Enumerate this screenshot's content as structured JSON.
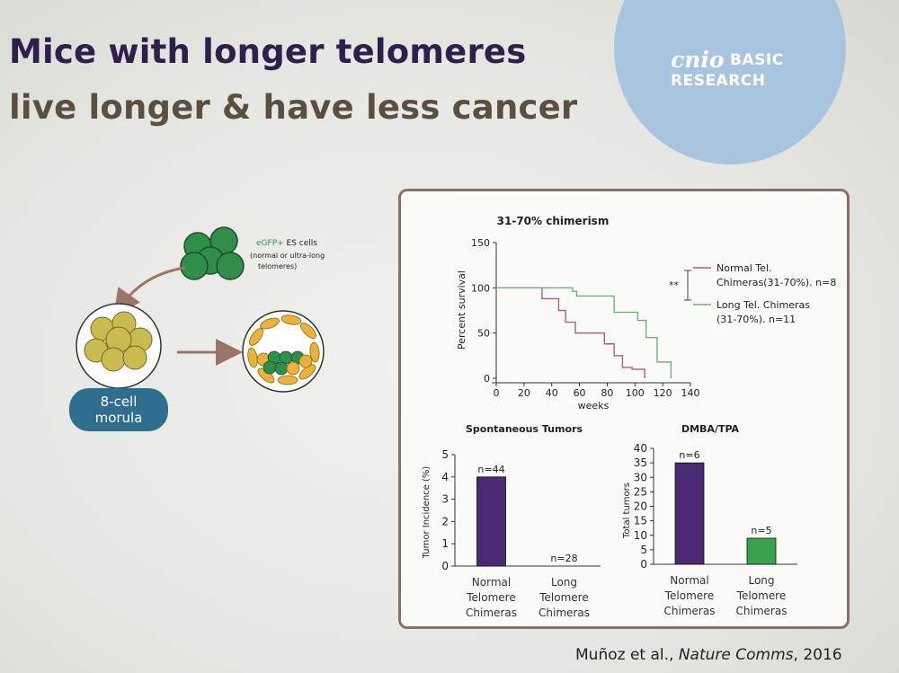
{
  "slide": {
    "title_line1": "Mice with longer telomeres",
    "title_line2": "live longer & have less cancer",
    "logo_main": "cnio",
    "logo_basic": "BASIC",
    "logo_research": "RESEARCH",
    "citation_authors": "Muñoz et al., ",
    "citation_journal": "Nature Comms",
    "citation_year": ", 2016"
  },
  "diagram": {
    "es_cells_label": "eGFP+",
    "es_cells_label_rest": " ES cells",
    "es_cells_sub1": "(normal or ultra-long",
    "es_cells_sub2": "telomeres)",
    "morula_line1": "8-cell",
    "morula_line2": "morula"
  },
  "colors": {
    "title_primary": "#2e1f4d",
    "title_secondary": "#5b5040",
    "logo_circle": "#a9c4df",
    "panel_border": "#8a6f64",
    "cell_green": "#2f8f4a",
    "cell_yellow": "#c9bb4f",
    "cell_orange": "#e9b23c",
    "arrow": "#9b7668",
    "morula_badge": "#2f6e8e",
    "normal_series": "#b55a7a",
    "long_series": "#6fb57a",
    "bar_normal": "#4a2a73",
    "bar_long": "#3aa04a"
  },
  "chart_data": [
    {
      "type": "line",
      "title": "31-70% chimerism",
      "xlabel": "weeks",
      "ylabel": "Percent survival",
      "xlim": [
        0,
        140
      ],
      "ylim": [
        0,
        150
      ],
      "xticks": [
        "0",
        "20",
        "40",
        "60",
        "80",
        "100",
        "120",
        "140"
      ],
      "yticks": [
        "0",
        "50",
        "100",
        "150"
      ],
      "significance": "**",
      "legend_position": "right",
      "series": [
        {
          "name_line1": "Normal Tel.",
          "name_line2": "Chimeras(31-70%). n=8",
          "x": [
            0,
            33,
            33,
            45,
            45,
            50,
            50,
            57,
            57,
            78,
            78,
            85,
            85,
            91,
            91,
            98,
            98,
            107,
            107
          ],
          "y": [
            100,
            100,
            88,
            88,
            75,
            75,
            62,
            62,
            50,
            50,
            38,
            38,
            25,
            25,
            12,
            12,
            10,
            10,
            0
          ]
        },
        {
          "name_line1": "Long Tel. Chimeras",
          "name_line2": "(31-70%). n=11",
          "x": [
            0,
            55,
            55,
            58,
            58,
            85,
            85,
            102,
            102,
            108,
            108,
            116,
            116,
            126,
            126
          ],
          "y": [
            100,
            100,
            96,
            96,
            91,
            91,
            73,
            73,
            64,
            64,
            45,
            45,
            18,
            18,
            0
          ]
        }
      ]
    },
    {
      "type": "bar",
      "title": "Spontaneous Tumors",
      "ylabel": "Tumor Incidence (%)",
      "ylim": [
        0,
        5
      ],
      "yticks": [
        "0",
        "1",
        "2",
        "3",
        "4",
        "5"
      ],
      "categories": [
        [
          "Normal",
          "Telomere",
          "Chimeras"
        ],
        [
          "Long",
          "Telomere",
          "Chimeras"
        ]
      ],
      "values": [
        4,
        0
      ],
      "labels": [
        "n=44",
        "n=28"
      ]
    },
    {
      "type": "bar",
      "title": "DMBA/TPA",
      "ylabel": "Total tumors",
      "ylim": [
        0,
        40
      ],
      "yticks": [
        "0",
        "5",
        "10",
        "15",
        "20",
        "25",
        "30",
        "35",
        "40"
      ],
      "categories": [
        [
          "Normal",
          "Telomere",
          "Chimeras"
        ],
        [
          "Long",
          "Telomere",
          "Chimeras"
        ]
      ],
      "values": [
        35,
        9
      ],
      "labels": [
        "n=6",
        "n=5"
      ]
    }
  ]
}
